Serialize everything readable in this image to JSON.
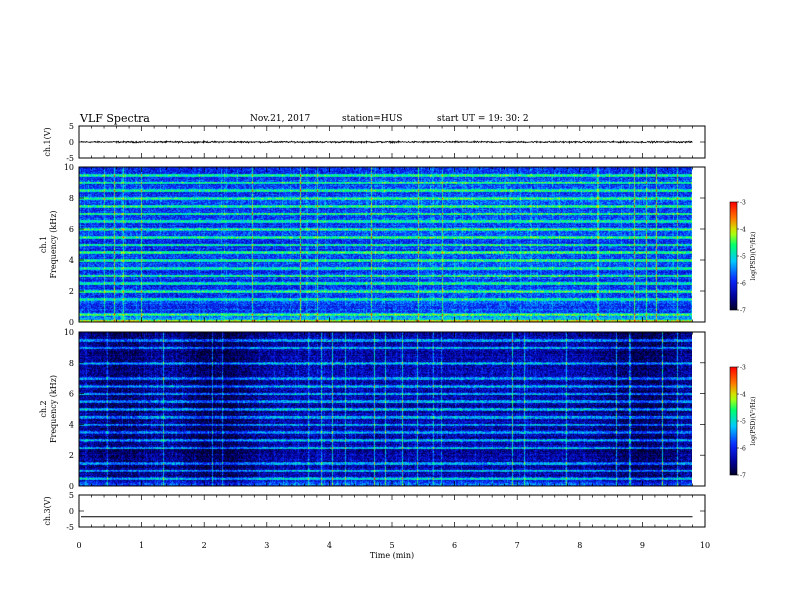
{
  "header": {
    "title": "VLF Spectra",
    "date": "Nov.21, 2017",
    "station": "station=HUS",
    "start": "start  UT  =   19: 30: 2"
  },
  "chart_data": [
    {
      "type": "line",
      "name": "ch.1 waveform",
      "ylabel": "ch.1(V)",
      "ylim": [
        -5,
        5
      ],
      "yticks": [
        "5",
        "0",
        "-5"
      ],
      "xlim": [
        0,
        10
      ],
      "baseline": 0,
      "noise_amplitude": 0.35
    },
    {
      "type": "heatmap",
      "name": "ch.1 spectrogram",
      "ylabel": "ch.1\nFrequency (kHz)",
      "ylim": [
        0,
        10
      ],
      "yticks": [
        "0",
        "2",
        "4",
        "6",
        "8",
        "10"
      ],
      "xlim": [
        0,
        9.8
      ],
      "background_level": -5.9,
      "bands_khz": [
        0.1,
        0.5,
        1.5,
        2.0,
        2.5,
        3.0,
        3.5,
        4.0,
        4.5,
        5.0,
        5.5,
        6.0,
        6.5,
        7.0,
        7.5,
        8.0,
        8.5,
        9.0,
        9.5
      ],
      "colorbar": {
        "label": "log(PSD)(V²/Hz)",
        "range": [
          -7,
          -3
        ],
        "ticks": [
          "-3",
          "-4",
          "-5",
          "-6",
          "-7"
        ]
      }
    },
    {
      "type": "heatmap",
      "name": "ch.2 spectrogram",
      "ylabel": "ch.2\nFrequency (kHz)",
      "ylim": [
        0,
        10
      ],
      "yticks": [
        "0",
        "2",
        "4",
        "6",
        "8",
        "10"
      ],
      "xlim": [
        0,
        9.8
      ],
      "background_level": -6.4,
      "bands_khz": [
        0.5,
        1.0,
        1.5,
        2.5,
        3.0,
        3.5,
        4.0,
        4.5,
        5.0,
        5.5,
        6.0,
        6.5,
        7.0,
        8.0,
        9.0,
        9.5
      ],
      "colorbar": {
        "label": "log(PSD)(V²/Hz)",
        "range": [
          -7,
          -3
        ],
        "ticks": [
          "-3",
          "-4",
          "-5",
          "-6",
          "-7"
        ]
      }
    },
    {
      "type": "line",
      "name": "ch.3 waveform",
      "ylabel": "ch.3(V)",
      "ylim": [
        -5,
        5
      ],
      "yticks": [
        "5",
        "0",
        "-5"
      ],
      "xlim": [
        0,
        10
      ],
      "baseline": -1.8,
      "noise_amplitude": 0
    }
  ],
  "x_axis": {
    "label": "Time  (min)",
    "range": [
      0,
      10
    ],
    "ticks": [
      "0",
      "1",
      "2",
      "3",
      "4",
      "5",
      "6",
      "7",
      "8",
      "9",
      "10"
    ]
  }
}
